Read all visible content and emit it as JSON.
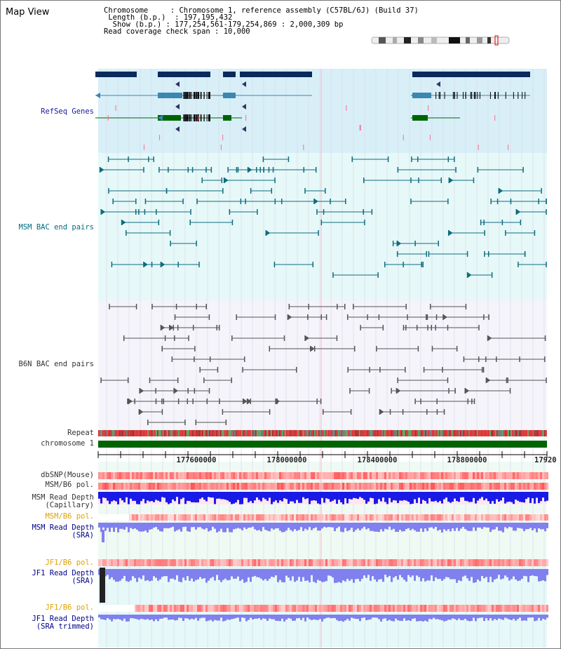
{
  "title": "Map View",
  "info": {
    "chromosome_label": "Chromosome",
    "chromosome_value": "Chromosome 1, reference assembly (C57BL/6J) (Build 37)",
    "length_label": "Length (b.p.)",
    "length_value": "197,195,432",
    "show_label": "Show (b.p.)",
    "show_value": "177,254,561-179,254,869 : 2,000,309 bp",
    "coverage_label": "Read coverage check span",
    "coverage_value": "10,000"
  },
  "tracks": {
    "refseq": "RefSeq Genes",
    "msm_bac": "MSM BAC end pairs",
    "b6n_bac": "B6N BAC end pairs",
    "repeat": "Repeat",
    "chromosome": "chromosome 1",
    "dbsnp": "dbSNP(Mouse)",
    "msm_b6_pol_1": "MSM/B6 pol.",
    "msm_depth_cap": "MSM Read Depth\n(Capillary)",
    "msm_b6_pol_2": "MSM/B6 pol.",
    "msm_depth_sra": "MSM Read Depth\n(SRA)",
    "jf1_b6_pol_1": "JF1/B6 pol.",
    "jf1_depth_sra": "JF1 Read Depth\n(SRA)",
    "jf1_b6_pol_2": "JF1/B6 pol.",
    "jf1_depth_trim": "JF1 Read Depth\n(SRA trimmed)"
  },
  "axis": {
    "ticks": [
      "177600000",
      "178000000",
      "178400000",
      "178800000",
      "17920"
    ]
  },
  "colors": {
    "refseq_bg": "#d8eff8",
    "gene_dark": "#0a2a5c",
    "gene_mid": "#3a88b0",
    "gene_green": "#006400",
    "msm_bg": "#e6f8f8",
    "msm_line": "#0e6c7e",
    "b6n_bg": "#f4f4fa",
    "b6n_line": "#555555",
    "chrom_bar": "#006400",
    "pol_red": "#f03a3a",
    "depth_blue": "#1a1ae6",
    "depth_light": "#8080ee"
  }
}
